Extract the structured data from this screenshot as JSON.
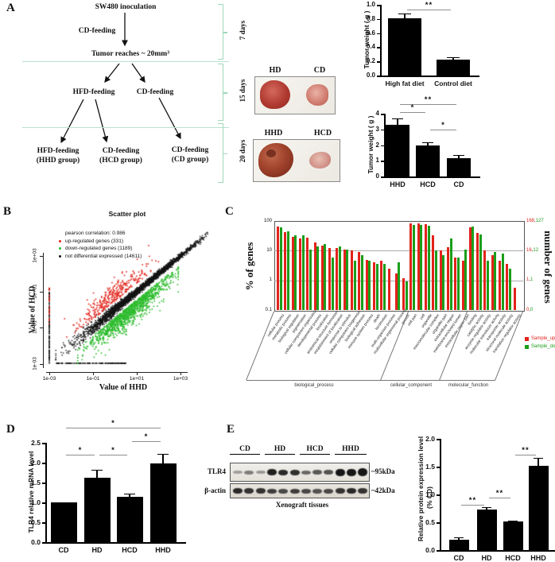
{
  "colors": {
    "bar": "#000000",
    "up": "#e2231a",
    "down": "#1a9e1a",
    "scatter_ns": "#141414",
    "bracket": "#9fd8ba",
    "sig_line": "#8f8f8f"
  },
  "panels": {
    "a": {
      "letter": "A",
      "flow": {
        "start": "SW480 inoculation",
        "pre": "CD-feeding",
        "milestone": "Tumor reaches ~ 20mm³",
        "branch_left": "HFD-feeding",
        "branch_right": "CD-feeding",
        "leaves": [
          {
            "line1": "HFD-feeding",
            "line2": "(HHD group)"
          },
          {
            "line1": "CD-feeding",
            "line2": "(HCD group)"
          },
          {
            "line1": "CD-feeding",
            "line2": "(CD group)"
          }
        ],
        "durations": [
          "7 days",
          "15 days",
          "20 days"
        ]
      },
      "photos": [
        {
          "labels": [
            "HD",
            "CD"
          ]
        },
        {
          "labels": [
            "HHD",
            "HCD"
          ]
        }
      ]
    },
    "b": {
      "letter": "B"
    },
    "c": {
      "letter": "C"
    },
    "d": {
      "letter": "D"
    },
    "e": {
      "letter": "E",
      "blot": {
        "lane_groups": [
          "CD",
          "HD",
          "HCD",
          "HHD"
        ],
        "rows": [
          {
            "label": "TLR4",
            "size": "~95kDa",
            "band_heights": [
              4,
              5,
              4,
              8,
              7,
              7,
              5,
              6,
              6,
              9,
              9,
              10
            ],
            "band_opacity": [
              0.35,
              0.5,
              0.38,
              0.95,
              0.9,
              0.88,
              0.6,
              0.68,
              0.7,
              1,
              1,
              1
            ]
          },
          {
            "label": "β-actin",
            "size": "~42kDa",
            "band_heights": [
              7,
              7,
              7,
              6,
              6,
              6,
              6,
              6,
              6,
              7,
              7,
              7
            ],
            "band_opacity": [
              0.9,
              0.85,
              0.85,
              0.8,
              0.75,
              0.8,
              0.75,
              0.7,
              0.75,
              0.85,
              0.9,
              0.85
            ]
          }
        ],
        "caption": "Xenograft tissues"
      }
    }
  },
  "chart_data": [
    {
      "id": "tumor-weight-hd-cd",
      "type": "bar",
      "ylabel": "Tumor weight ( g )",
      "categories": [
        "High fat diet",
        "Control diet"
      ],
      "values": [
        0.81,
        0.22
      ],
      "errors": [
        0.07,
        0.04
      ],
      "ylim": [
        0,
        1.0
      ],
      "yticks": [
        "0.0",
        "0.2",
        "0.4",
        "0.6",
        "0.8",
        "1.0"
      ],
      "significance": [
        {
          "a": 0,
          "b": 1,
          "label": "**",
          "height": 0.93
        }
      ]
    },
    {
      "id": "tumor-weight-hhd-hcd-cd",
      "type": "bar",
      "ylabel": "Tumor weight ( g )",
      "categories": [
        "HHD",
        "HCD",
        "CD"
      ],
      "values": [
        3.3,
        1.95,
        1.15
      ],
      "errors": [
        0.4,
        0.25,
        0.22
      ],
      "ylim": [
        0,
        4
      ],
      "yticks": [
        "0",
        "1",
        "2",
        "3",
        "4"
      ],
      "significance": [
        {
          "a": 0,
          "b": 2,
          "label": "**",
          "height": 4.62
        },
        {
          "a": 0,
          "b": 1,
          "label": "*",
          "height": 4.12
        },
        {
          "a": 1,
          "b": 2,
          "label": "*",
          "height": 2.98
        }
      ]
    },
    {
      "id": "scatter-hhd-vs-hcd",
      "type": "scatter",
      "title": "Scatter plot",
      "xlabel": "Value of HHD",
      "ylabel": "Value of HCD",
      "xticks": [
        "1e-03",
        "1e-01",
        "1e+01",
        "1e+03"
      ],
      "yticks": [
        "1e-03",
        "1e-01",
        "1e+01",
        "1e+03"
      ],
      "legend": [
        {
          "label": "pearson correlation: 0.986",
          "color": null
        },
        {
          "label": "up-regulated genes (331)",
          "color": "#e2231a"
        },
        {
          "label": "down-regulated genes (1189)",
          "color": "#2cbb2c"
        },
        {
          "label": "not differential expressed (14611)",
          "color": "#141414"
        }
      ],
      "counts": {
        "up": 331,
        "down": 1189,
        "not_differential": 14611
      },
      "pearson_correlation": 0.986,
      "axis_range": [
        "1e-03",
        "1e+03"
      ]
    },
    {
      "id": "go-annotation",
      "type": "bar",
      "ylabel_left": "% of genes",
      "ylabel_right": "number of genes",
      "yticks_left": [
        "100",
        "10",
        "1",
        "0.1"
      ],
      "yticks_right": [
        [
          "168",
          "127"
        ],
        [
          "16",
          "12"
        ],
        [
          "1",
          "1"
        ],
        [
          "0",
          "0"
        ]
      ],
      "legend": [
        {
          "label": "Sample_up",
          "color": "#e2231a"
        },
        {
          "label": "Sample_down",
          "color": "#1a9e1a"
        }
      ],
      "groups": [
        {
          "label": "biological_process",
          "count": 18
        },
        {
          "label": "cellular_component",
          "count": 8
        },
        {
          "label": "molecular_function",
          "count": 7
        }
      ],
      "categories": [
        "cellular process",
        "metabolic process",
        "biological regulation",
        "pigmentation",
        "cellular component organization",
        "developmental process",
        "localization",
        "anatomical structure formation",
        "establishment of localization",
        "response to stimulus",
        "cellular component biogenesis",
        "biological adhesion",
        "immune system process",
        "death",
        "locomotion",
        "multi-organism process",
        "multicellular organismal process",
        "growth",
        "cell part",
        "cell",
        "organelle",
        "macromolecular complex",
        "organelle part",
        "extracellular region",
        "membrane-enclosed lumen",
        "extracellular region part",
        "binding",
        "catalytic activity",
        "enzyme regulator activity",
        "molecular transducer activity",
        "transporter activity",
        "structural molecule activity",
        "translation regulator activity"
      ],
      "series": [
        {
          "name": "Sample_up",
          "values": [
            65,
            42,
            30,
            26,
            27,
            19,
            15,
            12,
            12,
            11,
            10,
            9,
            5,
            4,
            4.5,
            2.5,
            1.7,
            1.2,
            85,
            83,
            78,
            33,
            10,
            13,
            6,
            4.5,
            62,
            40,
            10,
            7,
            4.5,
            3.5,
            0.55
          ]
        },
        {
          "name": "Sample_down",
          "values": [
            62,
            46,
            33,
            33,
            11,
            14,
            17,
            6,
            14,
            11,
            4.5,
            7,
            4.5,
            3.5,
            3.5,
            0,
            4,
            0.9,
            75,
            72,
            68,
            10,
            7,
            25,
            6,
            11,
            66,
            34,
            4.5,
            9,
            8,
            2.5,
            0
          ]
        }
      ]
    },
    {
      "id": "tlr4-mrna",
      "type": "bar",
      "ylabel": "TLR4 relative mRNA level",
      "categories": [
        "CD",
        "HD",
        "HCD",
        "HHD"
      ],
      "values": [
        1.0,
        1.62,
        1.15,
        1.98
      ],
      "errors": [
        0,
        0.21,
        0.08,
        0.25
      ],
      "ylim": [
        0,
        2.5
      ],
      "yticks": [
        "0.0",
        "0.5",
        "1.0",
        "1.5",
        "2.0",
        "2.5"
      ],
      "significance": [
        {
          "a": 0,
          "b": 3,
          "label": "*",
          "height": 2.88
        },
        {
          "a": 2,
          "b": 3,
          "label": "*",
          "height": 2.54
        },
        {
          "a": 0,
          "b": 1,
          "label": "*",
          "height": 2.2
        },
        {
          "a": 1,
          "b": 2,
          "label": "*",
          "height": 2.2
        }
      ]
    },
    {
      "id": "tlr4-protein",
      "type": "bar",
      "ylabel": "Relative protein expression level",
      "ylabel2": "(%  CD)",
      "categories": [
        "CD",
        "HD",
        "HCD",
        "HHD"
      ],
      "values": [
        0.18,
        0.73,
        0.51,
        1.52
      ],
      "errors": [
        0.05,
        0.04,
        0.02,
        0.14
      ],
      "ylim": [
        0,
        2.0
      ],
      "yticks": [
        "0.0",
        "0.5",
        "1.0",
        "1.5",
        "2.0"
      ],
      "significance": [
        {
          "a": 0,
          "b": 1,
          "label": "**",
          "height": 0.82
        },
        {
          "a": 1,
          "b": 2,
          "label": "**",
          "height": 0.94
        },
        {
          "a": 2,
          "b": 3,
          "label": "**",
          "height": 1.72
        }
      ]
    }
  ]
}
